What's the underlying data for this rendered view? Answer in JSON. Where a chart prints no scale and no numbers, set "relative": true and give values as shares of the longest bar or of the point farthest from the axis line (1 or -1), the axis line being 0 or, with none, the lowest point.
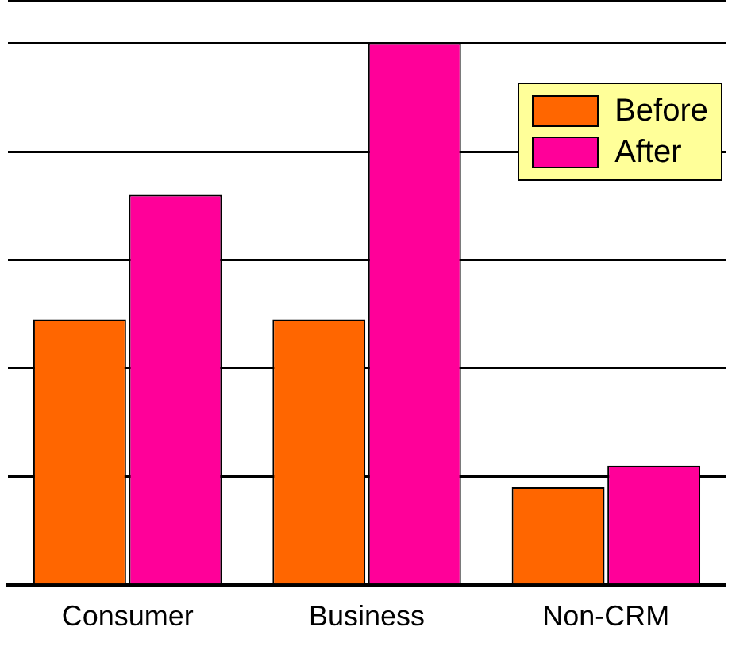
{
  "chart_data": {
    "type": "bar",
    "relative": true,
    "categories": [
      "Consumer",
      "Business",
      "Non-CRM"
    ],
    "series": [
      {
        "name": "Before",
        "color": "#ff6600",
        "values": [
          0.49,
          0.49,
          0.18
        ]
      },
      {
        "name": "After",
        "color": "#ff0099",
        "values": [
          0.72,
          1,
          0.22
        ]
      }
    ],
    "grid": "y",
    "legend": "top right"
  }
}
